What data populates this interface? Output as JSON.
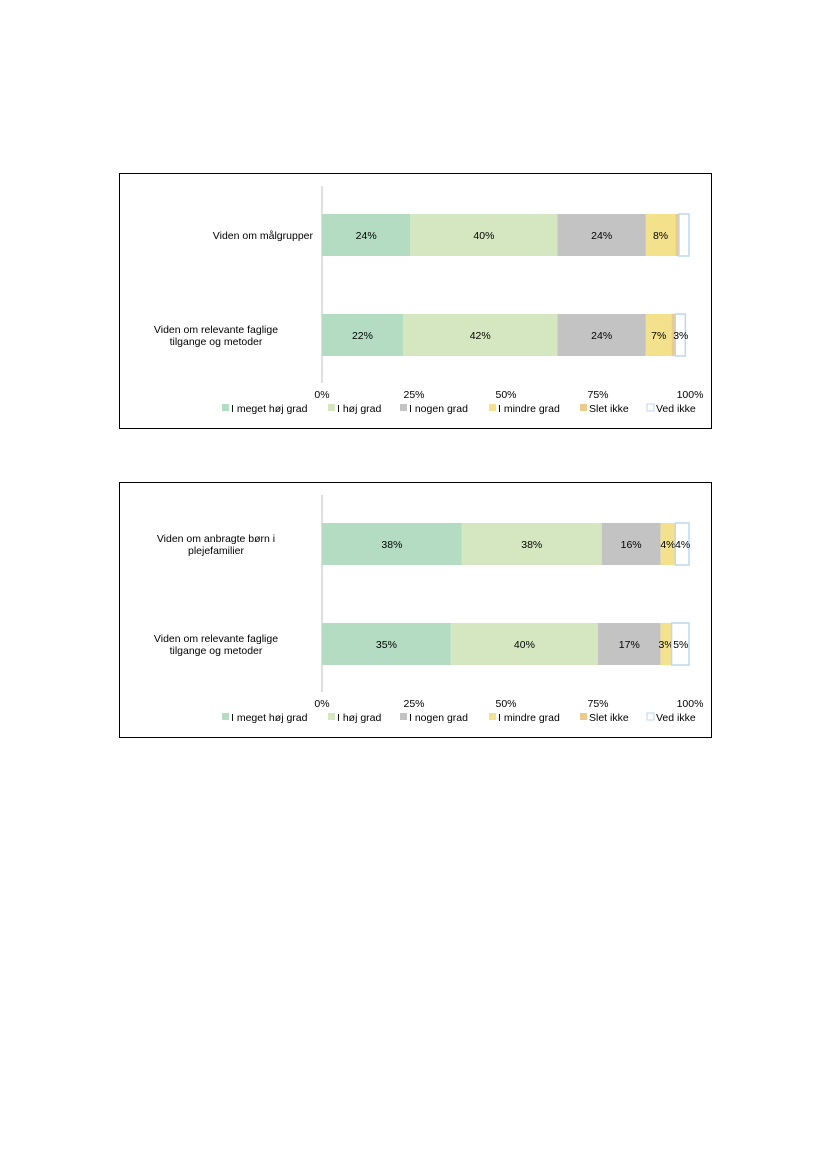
{
  "chart_data": [
    {
      "type": "stacked-bar-horizontal",
      "title": "",
      "categories": [
        "Viden om målgrupper",
        "Viden om relevante faglige tilgange og metoder"
      ],
      "x_ticks": [
        "0%",
        "25%",
        "50%",
        "75%",
        "100%"
      ],
      "xlim": [
        0,
        100
      ],
      "legend_position": "bottom",
      "series": [
        {
          "name": "I meget høj grad",
          "color": "#b3dcc2",
          "values": [
            24,
            22
          ],
          "labels": [
            "24%",
            "22%"
          ]
        },
        {
          "name": "I høj grad",
          "color": "#d5e7c0",
          "values": [
            40,
            42
          ],
          "labels": [
            "40%",
            "42%"
          ]
        },
        {
          "name": "I nogen grad",
          "color": "#c3c3c3",
          "values": [
            24,
            24
          ],
          "labels": [
            "24%",
            "24%"
          ]
        },
        {
          "name": "I mindre grad",
          "color": "#f3e28b",
          "values": [
            8,
            7
          ],
          "labels": [
            "8%",
            "7%"
          ]
        },
        {
          "name": "Slet ikke",
          "color": "#eacb8a",
          "values": [
            1,
            1
          ],
          "labels": [
            "",
            ""
          ]
        },
        {
          "name": "Ved ikke",
          "color": "#ffffff",
          "stroke": "#bdd7ee",
          "values": [
            3,
            3
          ],
          "labels": [
            "",
            "3%"
          ]
        }
      ]
    },
    {
      "type": "stacked-bar-horizontal",
      "title": "",
      "categories": [
        "Viden om anbragte børn i plejefamilier",
        "Viden om relevante faglige tilgange og metoder"
      ],
      "x_ticks": [
        "0%",
        "25%",
        "50%",
        "75%",
        "100%"
      ],
      "xlim": [
        0,
        100
      ],
      "legend_position": "bottom",
      "series": [
        {
          "name": "I meget høj grad",
          "color": "#b3dcc2",
          "values": [
            38,
            35
          ],
          "labels": [
            "38%",
            "35%"
          ]
        },
        {
          "name": "I høj grad",
          "color": "#d5e7c0",
          "values": [
            38,
            40
          ],
          "labels": [
            "38%",
            "40%"
          ]
        },
        {
          "name": "I nogen grad",
          "color": "#c3c3c3",
          "values": [
            16,
            17
          ],
          "labels": [
            "16%",
            "17%"
          ]
        },
        {
          "name": "I mindre grad",
          "color": "#f3e28b",
          "values": [
            4,
            3
          ],
          "labels": [
            "4%",
            "3%"
          ]
        },
        {
          "name": "Slet ikke",
          "color": "#eacb8a",
          "values": [
            0,
            0
          ],
          "labels": [
            "",
            ""
          ]
        },
        {
          "name": "Ved ikke",
          "color": "#ffffff",
          "stroke": "#bdd7ee",
          "values": [
            4,
            5
          ],
          "labels": [
            "4%",
            "5%"
          ]
        }
      ]
    }
  ]
}
